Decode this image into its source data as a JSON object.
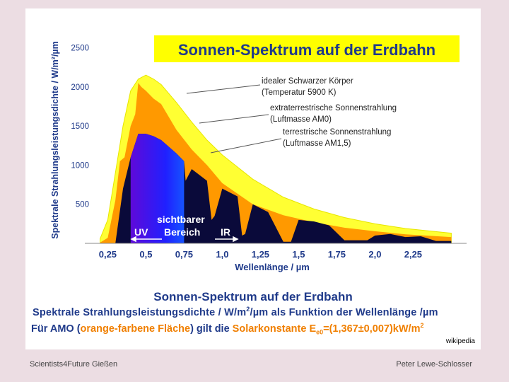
{
  "chart_data": {
    "type": "area",
    "title": "Sonnen-Spektrum auf der Erdbahn",
    "xlabel": "Wellenlänge / µm",
    "ylabel": "Spektrale Strahlungsleistungsdichte / W/m²/µm",
    "xlim": [
      0.1,
      2.6
    ],
    "ylim": [
      0,
      2550
    ],
    "x_ticks": [
      "0,25",
      "0,5",
      "0,75",
      "1,0",
      "1,25",
      "1,5",
      "1,75",
      "2,0",
      "2,25"
    ],
    "x_tick_values": [
      0.25,
      0.5,
      0.75,
      1.0,
      1.25,
      1.5,
      1.75,
      2.0,
      2.25
    ],
    "y_ticks": [
      "500",
      "1000",
      "1500",
      "2000",
      "2500"
    ],
    "y_tick_values": [
      500,
      1000,
      1500,
      2000,
      2500
    ],
    "series": [
      {
        "name": "idealer Schwarzer Körper (Temperatur 5900 K)",
        "color": "#ffff33",
        "x": [
          0.2,
          0.25,
          0.3,
          0.35,
          0.4,
          0.45,
          0.5,
          0.55,
          0.6,
          0.7,
          0.8,
          0.9,
          1.0,
          1.2,
          1.4,
          1.6,
          1.8,
          2.0,
          2.2,
          2.5
        ],
        "values": [
          60,
          300,
          900,
          1500,
          1950,
          2100,
          2150,
          2100,
          2030,
          1800,
          1550,
          1320,
          1130,
          820,
          590,
          440,
          330,
          250,
          190,
          130
        ]
      },
      {
        "name": "extraterrestrische Sonnenstrahlung (Luftmasse AM0)",
        "color": "#ff9900",
        "x": [
          0.2,
          0.25,
          0.3,
          0.33,
          0.36,
          0.4,
          0.43,
          0.45,
          0.47,
          0.5,
          0.55,
          0.6,
          0.7,
          0.8,
          0.9,
          1.0,
          1.2,
          1.4,
          1.6,
          1.8,
          2.0,
          2.2,
          2.5
        ],
        "values": [
          10,
          70,
          550,
          1050,
          1100,
          1500,
          1650,
          2050,
          2000,
          1950,
          1850,
          1780,
          1450,
          1200,
          1000,
          770,
          500,
          360,
          270,
          200,
          155,
          115,
          80
        ]
      },
      {
        "name": "terrestrische Sonnenstrahlung (Luftmasse AM1,5)",
        "color": "#0a0a3a",
        "x": [
          0.3,
          0.35,
          0.4,
          0.45,
          0.5,
          0.55,
          0.6,
          0.7,
          0.75,
          0.76,
          0.8,
          0.9,
          0.93,
          0.95,
          1.0,
          1.1,
          1.13,
          1.15,
          1.2,
          1.3,
          1.4,
          1.45,
          1.5,
          1.6,
          1.7,
          1.8,
          1.95,
          2.0,
          2.1,
          2.2,
          2.3,
          2.4,
          2.5
        ],
        "values": [
          0,
          700,
          1100,
          1400,
          1400,
          1370,
          1320,
          1150,
          1050,
          800,
          950,
          800,
          300,
          350,
          700,
          600,
          100,
          120,
          500,
          400,
          20,
          20,
          300,
          280,
          230,
          40,
          40,
          100,
          120,
          80,
          90,
          30,
          30
        ]
      }
    ],
    "legend": [
      "idealer Schwarzer Körper",
      "(Temperatur 5900 K)",
      "extraterrestrische Sonnenstrahlung",
      "(Luftmasse AM0)",
      "terrestrische Sonnenstrahlung",
      "(Luftmasse AM1,5)"
    ],
    "annotations": {
      "visible_line1": "sichtbarer",
      "visible_line2": "Bereich",
      "uv": "UV",
      "ir": "IR"
    },
    "visible_band": [
      0.4,
      0.75
    ]
  },
  "caption": {
    "title": "Sonnen-Spektrum auf der Erdbahn",
    "subtitle": "Spektrale Strahlungsleistungsdichte / W/m",
    "subtitle_sup": "2",
    "subtitle_rest": "/µm als Funktion der Wellenlänge  /µm",
    "am0_prefix": "Für AMO (",
    "am0_orange": "orange-farbene Fläche",
    "am0_mid": ") gilt die ",
    "am0_highlight": "Solarkonstante E",
    "am0_sub": "e0",
    "am0_value": "=(1,367±0,007)kW/m",
    "am0_sup": "2"
  },
  "credit": "wikipedia",
  "footer": {
    "left": "Scientists4Future   Gießen",
    "right": "Peter Lewe-Schlosser"
  },
  "colors": {
    "title_blue": "#1f3a8a",
    "orange": "#f07f00",
    "title_box": "#ffff00"
  }
}
